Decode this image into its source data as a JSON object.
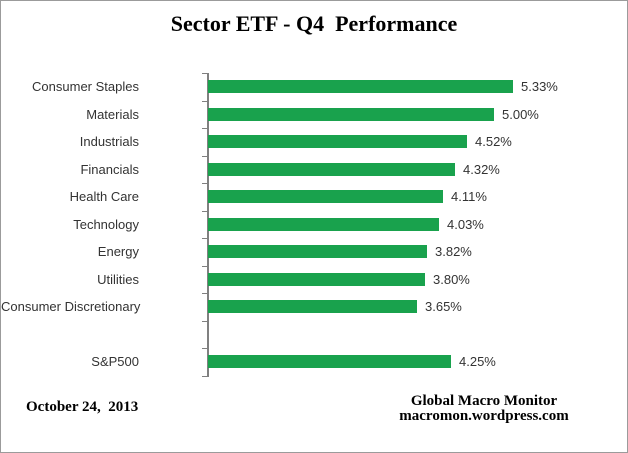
{
  "chart_data": {
    "type": "bar",
    "orientation": "horizontal",
    "title": "Sector ETF - Q4  Performance",
    "categories": [
      "Consumer Staples",
      "Materials",
      "Industrials",
      "Financials",
      "Health Care",
      "Technology",
      "Energy",
      "Utilities",
      "Consumer Discretionary",
      "",
      "S&P500"
    ],
    "values": [
      5.33,
      5.0,
      4.52,
      4.32,
      4.11,
      4.03,
      3.82,
      3.8,
      3.65,
      null,
      4.25
    ],
    "value_labels": [
      "5.33%",
      "5.00%",
      "4.52%",
      "4.32%",
      "4.11%",
      "4.03%",
      "3.82%",
      "3.80%",
      "3.65%",
      "",
      "4.25%"
    ],
    "xlim": [
      0,
      6
    ],
    "grid": false,
    "legend": false,
    "bar_color": "#19A24D",
    "axis_color": "#808080",
    "label_color": "#333333"
  },
  "footer": {
    "date": "October 24,  2013",
    "credit_line1": "Global Macro Monitor",
    "credit_line2": "macromon.wordpress.com"
  }
}
